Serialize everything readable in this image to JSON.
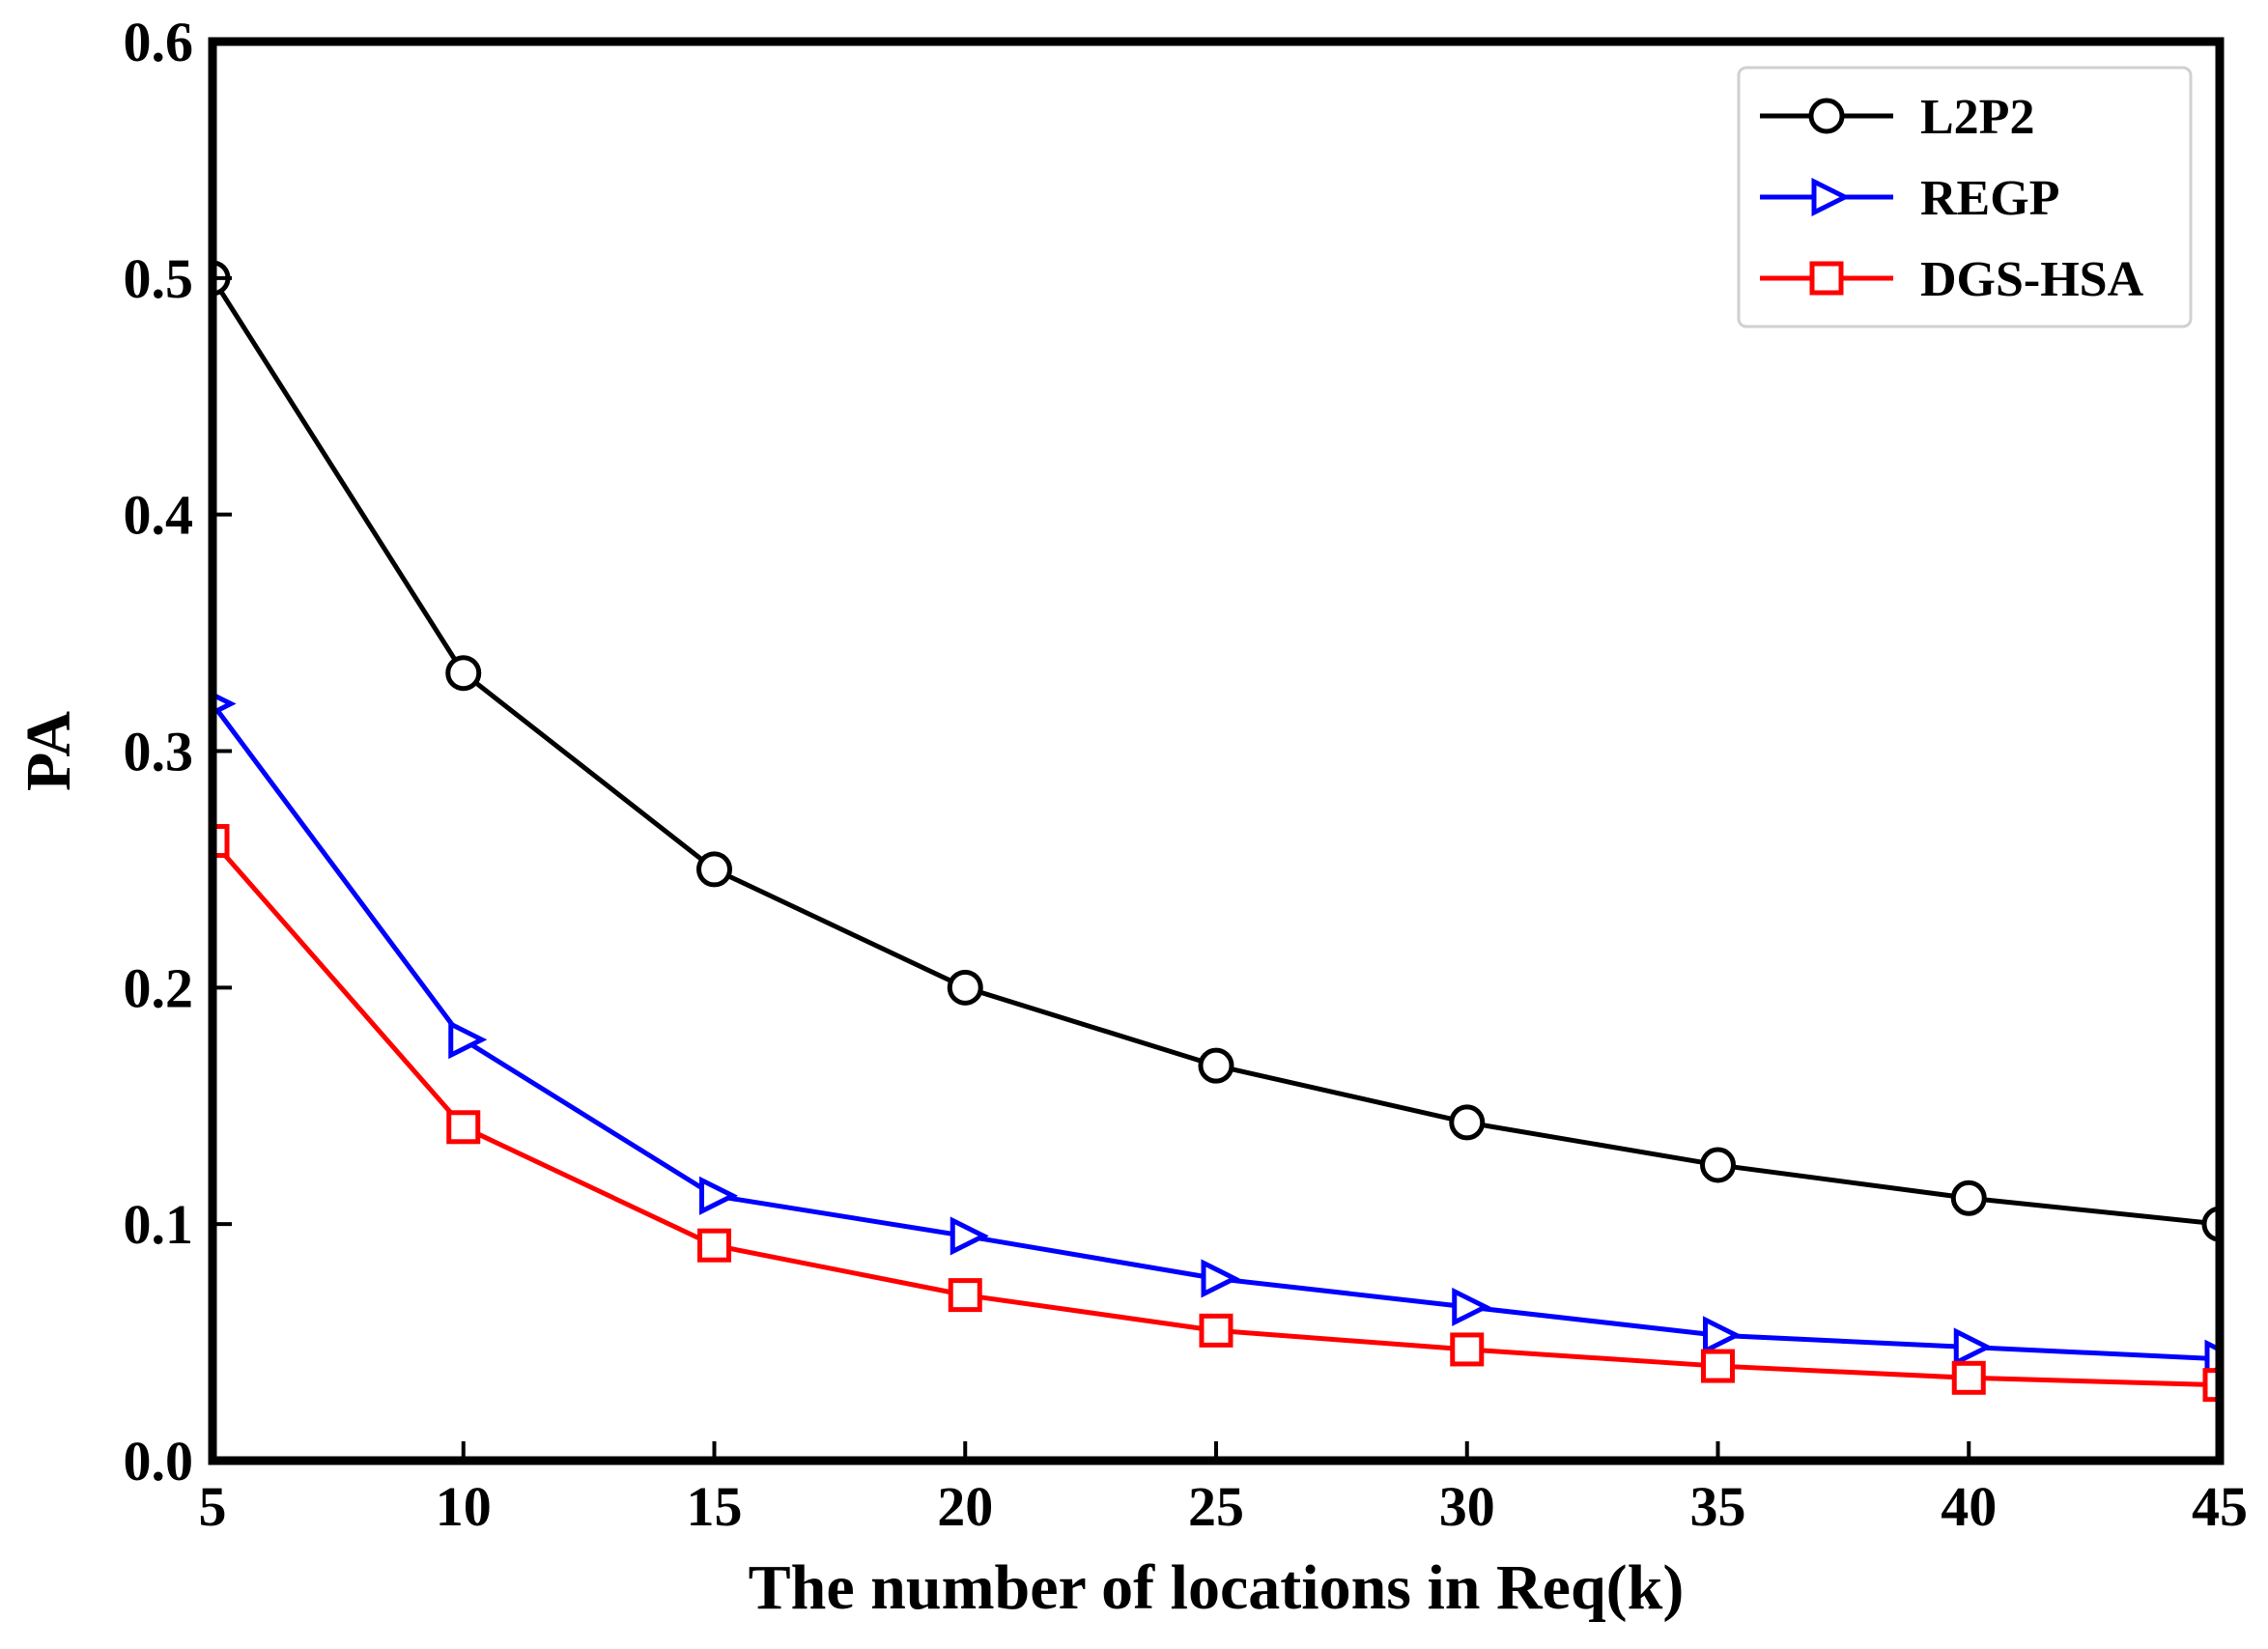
{
  "chart_data": {
    "type": "line",
    "title": "",
    "xlabel": "The number of locations in Req(k)",
    "ylabel": "PA",
    "xlim": [
      5,
      45
    ],
    "ylim": [
      0.0,
      0.6
    ],
    "xticks": [
      5,
      10,
      15,
      20,
      25,
      30,
      35,
      40,
      45
    ],
    "yticks": [
      0.0,
      0.1,
      0.2,
      0.3,
      0.4,
      0.5,
      0.6
    ],
    "xtick_labels": [
      "5",
      "10",
      "15",
      "20",
      "25",
      "30",
      "35",
      "40",
      "45"
    ],
    "ytick_labels": [
      "0.0",
      "0.1",
      "0.2",
      "0.3",
      "0.4",
      "0.5",
      "0.6"
    ],
    "grid": false,
    "legend_position": "top-right",
    "x": [
      5,
      10,
      15,
      20,
      25,
      30,
      35,
      40,
      45
    ],
    "series": [
      {
        "name": "L2P2",
        "color": "#000000",
        "marker": "circle",
        "values": [
          0.5,
          0.333,
          0.25,
          0.2,
          0.167,
          0.143,
          0.125,
          0.111,
          0.1
        ]
      },
      {
        "name": "REGP",
        "color": "#0000ff",
        "marker": "triangle-right",
        "values": [
          0.32,
          0.178,
          0.112,
          0.095,
          0.077,
          0.065,
          0.053,
          0.048,
          0.043
        ]
      },
      {
        "name": "DGS-HSA",
        "color": "#ff0000",
        "marker": "square",
        "values": [
          0.262,
          0.141,
          0.091,
          0.07,
          0.055,
          0.047,
          0.04,
          0.035,
          0.032
        ]
      }
    ]
  }
}
